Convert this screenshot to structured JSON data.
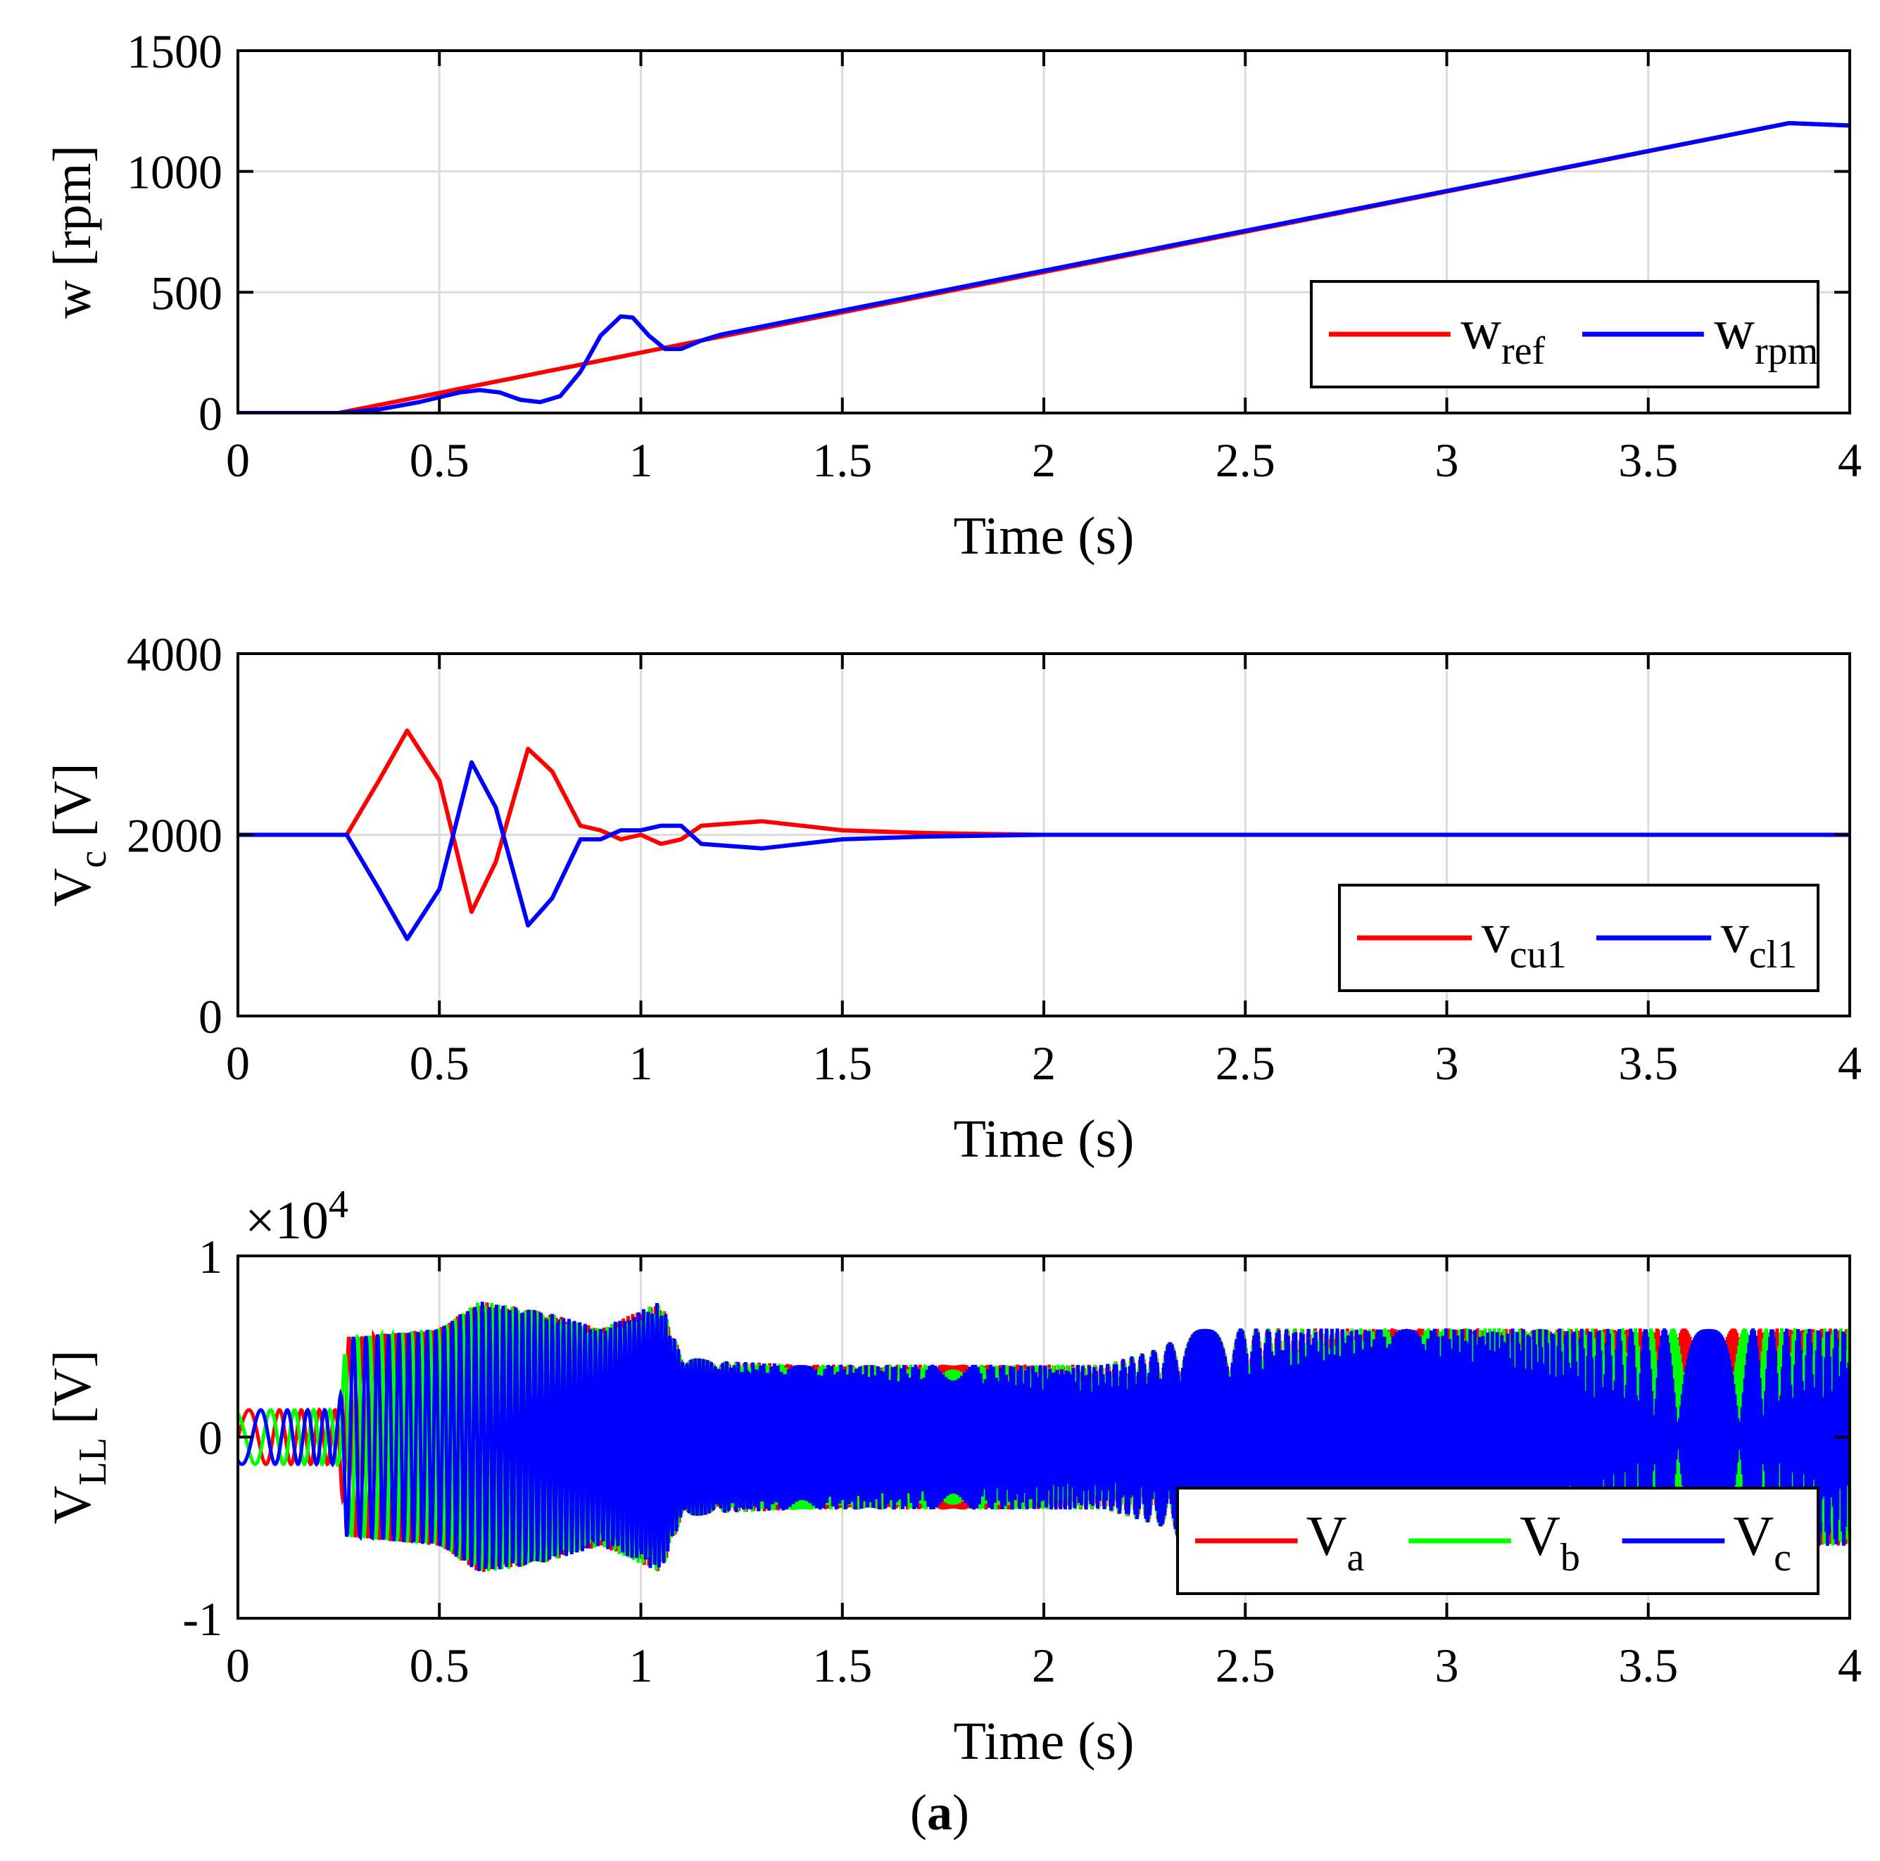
{
  "chart_data": [
    {
      "type": "line",
      "id": "speed",
      "xlabel": "Time (s)",
      "ylabel": "w [rpm]",
      "xlim": [
        0,
        4
      ],
      "ylim": [
        0,
        1500
      ],
      "x_ticks": [
        0,
        0.5,
        1,
        1.5,
        2,
        2.5,
        3,
        3.5,
        4
      ],
      "x_tick_labels": [
        "0",
        "0.5",
        "1",
        "1.5",
        "2",
        "2.5",
        "3",
        "3.5",
        "4"
      ],
      "y_ticks": [
        0,
        500,
        1000,
        1500
      ],
      "y_tick_labels": [
        "0",
        "500",
        "1000",
        "1500"
      ],
      "grid": true,
      "legend_position": "lower-right",
      "series": [
        {
          "name": "w",
          "sub": "ref",
          "color": "#ff0000",
          "x": [
            0,
            0.25,
            3.85,
            4.0
          ],
          "y": [
            0,
            0,
            1200,
            1190
          ]
        },
        {
          "name": "w",
          "sub": "rpm",
          "color": "#0000ff",
          "x": [
            0,
            0.25,
            0.35,
            0.45,
            0.55,
            0.6,
            0.65,
            0.7,
            0.75,
            0.8,
            0.85,
            0.9,
            0.95,
            0.98,
            1.02,
            1.06,
            1.1,
            1.15,
            1.2,
            3.85,
            4.0
          ],
          "y": [
            0,
            0,
            15,
            45,
            85,
            95,
            85,
            55,
            45,
            70,
            170,
            320,
            400,
            395,
            320,
            265,
            265,
            300,
            325,
            1200,
            1190
          ]
        }
      ]
    },
    {
      "type": "line",
      "id": "capacitor",
      "xlabel": "Time (s)",
      "ylabel": "V",
      "ylabel_sub": "c",
      "ylabel_suffix": "[V]",
      "xlim": [
        0,
        4
      ],
      "ylim": [
        0,
        4000
      ],
      "x_ticks": [
        0,
        0.5,
        1,
        1.5,
        2,
        2.5,
        3,
        3.5,
        4
      ],
      "x_tick_labels": [
        "0",
        "0.5",
        "1",
        "1.5",
        "2",
        "2.5",
        "3",
        "3.5",
        "4"
      ],
      "y_ticks": [
        0,
        2000,
        4000
      ],
      "y_tick_labels": [
        "0",
        "2000",
        "4000"
      ],
      "grid": true,
      "legend_position": "lower-right",
      "series": [
        {
          "name": "v",
          "sub": "cu1",
          "color": "#ff0000",
          "x": [
            0,
            0.27,
            0.35,
            0.42,
            0.5,
            0.58,
            0.64,
            0.72,
            0.78,
            0.85,
            0.9,
            0.95,
            1.0,
            1.05,
            1.1,
            1.15,
            1.3,
            1.5,
            1.7,
            2.0,
            4.0
          ],
          "y": [
            2000,
            2000,
            2600,
            3150,
            2600,
            1150,
            1700,
            2950,
            2700,
            2100,
            2050,
            1950,
            2000,
            1900,
            1950,
            2100,
            2150,
            2050,
            2020,
            2000,
            2000
          ]
        },
        {
          "name": "v",
          "sub": "cl1",
          "color": "#0000ff",
          "x": [
            0,
            0.27,
            0.35,
            0.42,
            0.5,
            0.58,
            0.64,
            0.72,
            0.78,
            0.85,
            0.9,
            0.95,
            1.0,
            1.05,
            1.1,
            1.15,
            1.3,
            1.5,
            1.7,
            2.0,
            4.0
          ],
          "y": [
            2000,
            2000,
            1400,
            850,
            1400,
            2800,
            2300,
            1000,
            1300,
            1950,
            1950,
            2050,
            2050,
            2100,
            2100,
            1900,
            1850,
            1950,
            1980,
            2000,
            2000
          ]
        }
      ]
    },
    {
      "type": "line",
      "id": "line-voltage",
      "xlabel": "Time (s)",
      "ylabel": "V",
      "ylabel_sub": "LL",
      "ylabel_suffix": "[V]",
      "exponent_label": "×10",
      "exponent_power": "4",
      "xlim": [
        0,
        4
      ],
      "ylim": [
        -1,
        1
      ],
      "x_ticks": [
        0,
        0.5,
        1,
        1.5,
        2,
        2.5,
        3,
        3.5,
        4
      ],
      "x_tick_labels": [
        "0",
        "0.5",
        "1",
        "1.5",
        "2",
        "2.5",
        "3",
        "3.5",
        "4"
      ],
      "y_ticks": [
        -1,
        0,
        1
      ],
      "y_tick_labels": [
        "-1",
        "0",
        "1"
      ],
      "grid": true,
      "legend_position": "lower-right",
      "envelope": {
        "t": [
          0,
          0.25,
          0.27,
          0.5,
          0.6,
          0.75,
          0.9,
          1.05,
          1.1,
          1.2,
          1.4,
          2.15,
          2.3,
          2.35,
          2.5,
          4.0
        ],
        "amp": [
          0.15,
          0.15,
          0.55,
          0.6,
          0.75,
          0.7,
          0.6,
          0.75,
          0.45,
          0.42,
          0.4,
          0.4,
          0.5,
          0.6,
          0.6,
          0.6
        ]
      },
      "series": [
        {
          "name": "V",
          "sub": "a",
          "color": "#ff0000",
          "phase_deg": 0
        },
        {
          "name": "V",
          "sub": "b",
          "color": "#00ff00",
          "phase_deg": 120
        },
        {
          "name": "V",
          "sub": "c",
          "color": "#0000ff",
          "phase_deg": 240
        }
      ]
    }
  ],
  "caption": {
    "open": "(",
    "letter": "a",
    "close": ")"
  }
}
